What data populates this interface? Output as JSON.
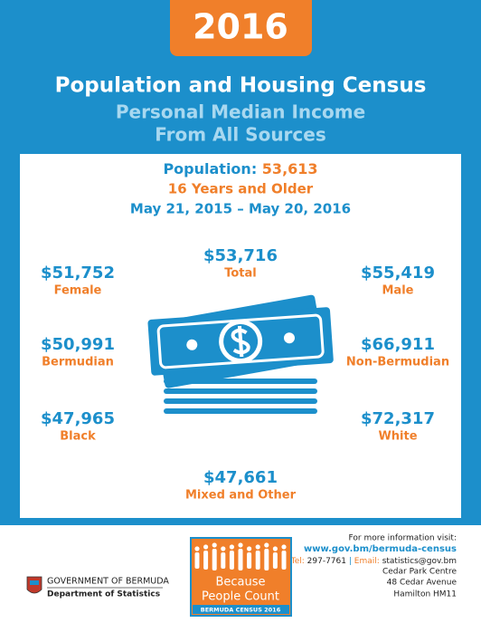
{
  "header": {
    "year": "2016",
    "title": "Population and Housing Census",
    "subtitle": [
      "Personal Median Income",
      "From All Sources"
    ]
  },
  "population": {
    "label": "Population:",
    "value": "53,613",
    "age": "16 Years and Older",
    "period": "May 21, 2015 – May 20, 2016"
  },
  "incomes": [
    {
      "value": "$53,716",
      "label": "Total"
    },
    {
      "value": "$51,752",
      "label": "Female"
    },
    {
      "value": "$55,419",
      "label": "Male"
    },
    {
      "value": "$50,991",
      "label": "Bermudian"
    },
    {
      "value": "$66,911",
      "label": "Non-Bermudian"
    },
    {
      "value": "$47,965",
      "label": "Black"
    },
    {
      "value": "$72,317",
      "label": "White"
    },
    {
      "value": "$47,661",
      "label": "Mixed and Other"
    }
  ],
  "contact": {
    "intro": "For more information visit:",
    "url": "www.gov.bm/bermuda-census",
    "tel_label": "Tel:",
    "tel": "297-7761",
    "separator": "|",
    "email_label": "Email:",
    "email": "statistics@gov.bm",
    "address": [
      "Cedar Park Centre",
      "48 Cedar Avenue",
      "Hamilton HM11"
    ]
  },
  "logo": {
    "line1": "Because",
    "line2": "People Count",
    "tagline": "BERMUDA CENSUS 2016"
  },
  "government": {
    "name": "GOVERNMENT OF BERMUDA",
    "department": "Department of Statistics"
  }
}
